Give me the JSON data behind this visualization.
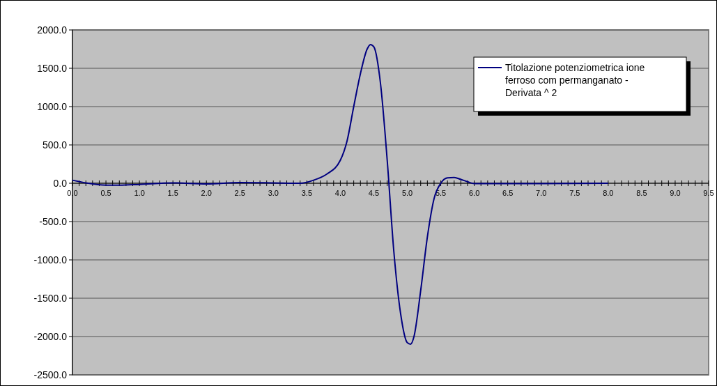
{
  "chart_data": {
    "type": "line",
    "legend": "top right",
    "grid": "y",
    "marker": "none",
    "line_style": "solid",
    "xlim": [
      0,
      9.5
    ],
    "ylim": [
      -2500,
      2000
    ],
    "yticks": [
      {
        "value": -2500,
        "label": "-2500.0"
      },
      {
        "value": -2000,
        "label": "-2000.0"
      },
      {
        "value": -1500,
        "label": "-1500.0"
      },
      {
        "value": -1000,
        "label": "-1000.0"
      },
      {
        "value": -500,
        "label": "-500.0"
      },
      {
        "value": 0,
        "label": "0.0"
      },
      {
        "value": 500,
        "label": "500.0"
      },
      {
        "value": 1000,
        "label": "1000.0"
      },
      {
        "value": 1500,
        "label": "1500.0"
      },
      {
        "value": 2000,
        "label": "2000.0"
      }
    ],
    "xticks": [
      {
        "value": 0,
        "label": "0.0"
      },
      {
        "value": 0.1,
        "label": null
      },
      {
        "value": 0.2,
        "label": null
      },
      {
        "value": 0.3,
        "label": null
      },
      {
        "value": 0.4,
        "label": null
      },
      {
        "value": 0.5,
        "label": "0.5"
      },
      {
        "value": 0.6,
        "label": null
      },
      {
        "value": 0.7,
        "label": null
      },
      {
        "value": 0.8,
        "label": null
      },
      {
        "value": 0.9,
        "label": null
      },
      {
        "value": 1,
        "label": "1.0"
      },
      {
        "value": 1.1,
        "label": null
      },
      {
        "value": 1.2,
        "label": null
      },
      {
        "value": 1.3,
        "label": null
      },
      {
        "value": 1.4,
        "label": null
      },
      {
        "value": 1.5,
        "label": "1.5"
      },
      {
        "value": 1.6,
        "label": null
      },
      {
        "value": 1.7,
        "label": null
      },
      {
        "value": 1.8,
        "label": null
      },
      {
        "value": 1.9,
        "label": null
      },
      {
        "value": 2,
        "label": "2.0"
      },
      {
        "value": 2.1,
        "label": null
      },
      {
        "value": 2.2,
        "label": null
      },
      {
        "value": 2.3,
        "label": null
      },
      {
        "value": 2.4,
        "label": null
      },
      {
        "value": 2.5,
        "label": "2.5"
      },
      {
        "value": 2.6,
        "label": null
      },
      {
        "value": 2.7,
        "label": null
      },
      {
        "value": 2.8,
        "label": null
      },
      {
        "value": 2.9,
        "label": null
      },
      {
        "value": 3,
        "label": "3.0"
      },
      {
        "value": 3.1,
        "label": null
      },
      {
        "value": 3.2,
        "label": null
      },
      {
        "value": 3.3,
        "label": null
      },
      {
        "value": 3.4,
        "label": null
      },
      {
        "value": 3.5,
        "label": "3.5"
      },
      {
        "value": 3.6,
        "label": null
      },
      {
        "value": 3.7,
        "label": null
      },
      {
        "value": 3.8,
        "label": null
      },
      {
        "value": 3.9,
        "label": null
      },
      {
        "value": 4,
        "label": "4.0"
      },
      {
        "value": 4.1,
        "label": null
      },
      {
        "value": 4.2,
        "label": null
      },
      {
        "value": 4.3,
        "label": null
      },
      {
        "value": 4.4,
        "label": null
      },
      {
        "value": 4.5,
        "label": "4.5"
      },
      {
        "value": 4.6,
        "label": null
      },
      {
        "value": 4.7,
        "label": null
      },
      {
        "value": 4.8,
        "label": null
      },
      {
        "value": 4.9,
        "label": null
      },
      {
        "value": 5,
        "label": "5.0"
      },
      {
        "value": 5.1,
        "label": null
      },
      {
        "value": 5.2,
        "label": null
      },
      {
        "value": 5.3,
        "label": null
      },
      {
        "value": 5.4,
        "label": null
      },
      {
        "value": 5.5,
        "label": "5.5"
      },
      {
        "value": 5.6,
        "label": null
      },
      {
        "value": 5.7,
        "label": null
      },
      {
        "value": 5.8,
        "label": null
      },
      {
        "value": 5.9,
        "label": null
      },
      {
        "value": 6,
        "label": "6.0"
      },
      {
        "value": 6.1,
        "label": null
      },
      {
        "value": 6.2,
        "label": null
      },
      {
        "value": 6.3,
        "label": null
      },
      {
        "value": 6.4,
        "label": null
      },
      {
        "value": 6.5,
        "label": "6.5"
      },
      {
        "value": 6.6,
        "label": null
      },
      {
        "value": 6.7,
        "label": null
      },
      {
        "value": 6.8,
        "label": null
      },
      {
        "value": 6.9,
        "label": null
      },
      {
        "value": 7,
        "label": "7.0"
      },
      {
        "value": 7.1,
        "label": null
      },
      {
        "value": 7.2,
        "label": null
      },
      {
        "value": 7.3,
        "label": null
      },
      {
        "value": 7.4,
        "label": null
      },
      {
        "value": 7.5,
        "label": "7.5"
      },
      {
        "value": 7.6,
        "label": null
      },
      {
        "value": 7.7,
        "label": null
      },
      {
        "value": 7.8,
        "label": null
      },
      {
        "value": 7.9,
        "label": null
      },
      {
        "value": 8,
        "label": "8.0"
      },
      {
        "value": 8.1,
        "label": null
      },
      {
        "value": 8.2,
        "label": null
      },
      {
        "value": 8.3,
        "label": null
      },
      {
        "value": 8.4,
        "label": null
      },
      {
        "value": 8.5,
        "label": "8.5"
      },
      {
        "value": 8.6,
        "label": null
      },
      {
        "value": 8.7,
        "label": null
      },
      {
        "value": 8.8,
        "label": null
      },
      {
        "value": 8.9,
        "label": null
      },
      {
        "value": 9,
        "label": "9.0"
      },
      {
        "value": 9.1,
        "label": null
      },
      {
        "value": 9.2,
        "label": null
      },
      {
        "value": 9.3,
        "label": null
      },
      {
        "value": 9.4,
        "label": null
      },
      {
        "value": 9.5,
        "label": "9.5"
      }
    ],
    "series": [
      {
        "name": "Titolazione potenziometrica ione ferroso com permanganato - Derivata ^ 2",
        "color": "#000080",
        "x": [
          0,
          0.2,
          0.5,
          0.7,
          1.0,
          1.5,
          2.0,
          2.5,
          3.0,
          3.4,
          3.6,
          3.8,
          4.0,
          4.1,
          4.2,
          4.3,
          4.4,
          4.45,
          4.5,
          4.6,
          4.7,
          4.8,
          4.9,
          5.0,
          5.05,
          5.1,
          5.2,
          5.3,
          5.4,
          5.5,
          5.6,
          5.7,
          5.8,
          5.9,
          6.0,
          7.0,
          8.0
        ],
        "values": [
          40,
          5,
          -25,
          -25,
          -15,
          5,
          -10,
          10,
          5,
          0,
          40,
          120,
          300,
          550,
          1000,
          1430,
          1750,
          1810,
          1780,
          1300,
          300,
          -900,
          -1700,
          -2080,
          -2100,
          -2000,
          -1400,
          -700,
          -200,
          0,
          70,
          75,
          50,
          20,
          -5,
          -5,
          0
        ]
      }
    ]
  }
}
